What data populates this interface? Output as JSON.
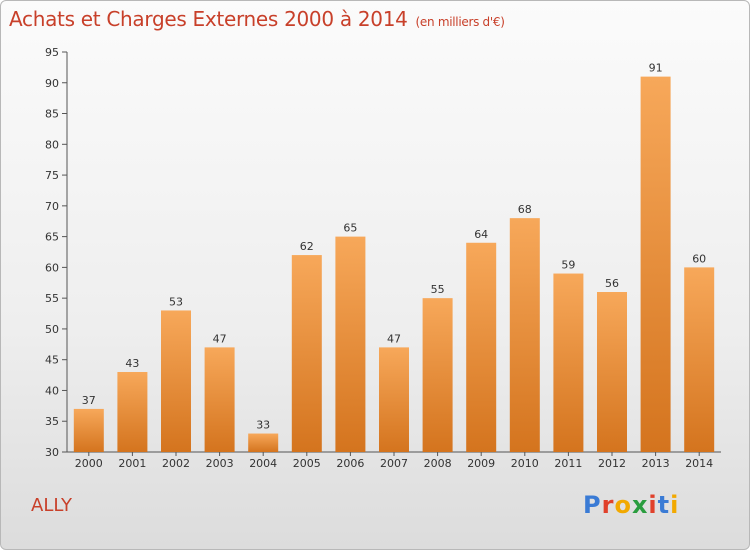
{
  "title": "Achats et Charges Externes 2000 à 2014",
  "subtitle": "(en milliers d'€)",
  "place": "ALLY",
  "logo": {
    "text": "Proxiti"
  },
  "colors": {
    "bar_top": "#f7a85a",
    "bar_bottom": "#d4741e",
    "title": "#c8402a",
    "logo": [
      "#3a7bd5",
      "#e0412b",
      "#f2a900",
      "#2a9d3f",
      "#e0412b",
      "#3a7bd5",
      "#f2a900"
    ]
  },
  "chart_data": {
    "type": "bar",
    "categories": [
      "2000",
      "2001",
      "2002",
      "2003",
      "2004",
      "2005",
      "2006",
      "2007",
      "2008",
      "2009",
      "2010",
      "2011",
      "2012",
      "2013",
      "2014"
    ],
    "values": [
      37,
      43,
      53,
      47,
      33,
      62,
      65,
      47,
      55,
      64,
      68,
      59,
      56,
      91,
      60
    ],
    "ylim": [
      30,
      95
    ],
    "yticks": [
      30,
      35,
      40,
      45,
      50,
      55,
      60,
      65,
      70,
      75,
      80,
      85,
      90,
      95
    ],
    "grid": false,
    "data_labels": true
  }
}
